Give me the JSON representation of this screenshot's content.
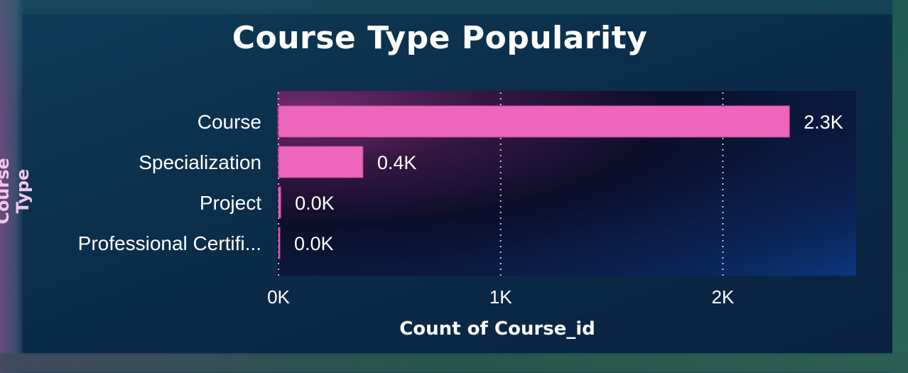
{
  "chart_data": {
    "type": "bar",
    "orientation": "horizontal",
    "title": "Course Type Popularity",
    "xlabel": "Count of Course_id",
    "ylabel": "Course Type",
    "categories": [
      "Course",
      "Specialization",
      "Project",
      "Professional Certifi..."
    ],
    "values": [
      2300,
      380,
      10,
      3
    ],
    "value_labels": [
      "2.3K",
      "0.4K",
      "0.0K",
      "0.0K"
    ],
    "x_ticks": [
      0,
      1000,
      2000
    ],
    "x_tick_labels": [
      "0K",
      "1K",
      "2K"
    ],
    "xlim": [
      0,
      2600
    ],
    "grid": "vertical-dotted",
    "bar_color": "#ee66bb"
  }
}
